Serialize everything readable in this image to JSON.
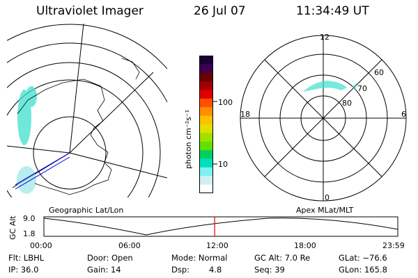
{
  "header": {
    "title": "Ultraviolet Imager",
    "date": "26 Jul 07",
    "time": "11:34:49 UT"
  },
  "panels": {
    "left_label": "Geographic Lat/Lon",
    "right_label": "Apex MLat/MLT"
  },
  "colorbar": {
    "unit": "photon cm⁻²s⁻¹",
    "ticks": [
      "100",
      "10"
    ],
    "colors": [
      "#1a0033",
      "#3a0050",
      "#6a0000",
      "#a00000",
      "#e00000",
      "#ff5000",
      "#ff9000",
      "#ffc000",
      "#e0e000",
      "#a0e000",
      "#60e000",
      "#00d060",
      "#00e0c0",
      "#80f0f0",
      "#d0f0f0",
      "#ffffff"
    ]
  },
  "polar": {
    "mlt_labels": {
      "top": "12",
      "left": "18",
      "right": "6",
      "bottom": "0"
    },
    "mlat_labels": [
      "60",
      "70",
      "80"
    ]
  },
  "timeline": {
    "ylabel": "GC Alt",
    "y_ticks": [
      "9.0",
      "1.8"
    ],
    "x_ticks": [
      "00:00",
      "06:00",
      "12:00",
      "18:00",
      "23:59"
    ],
    "current_time_hours": 11.58
  },
  "info": {
    "row1": [
      "Flt: LBHL",
      "Door: Open",
      "Mode: Normal",
      "GC Alt: 7.0 Re",
      "GLat: −76.6"
    ],
    "row2": [
      "IP: 36.0",
      "Gain: 14",
      "Dsp:",
      "4.8",
      "Seq: 39",
      "GLon: 165.8"
    ]
  }
}
